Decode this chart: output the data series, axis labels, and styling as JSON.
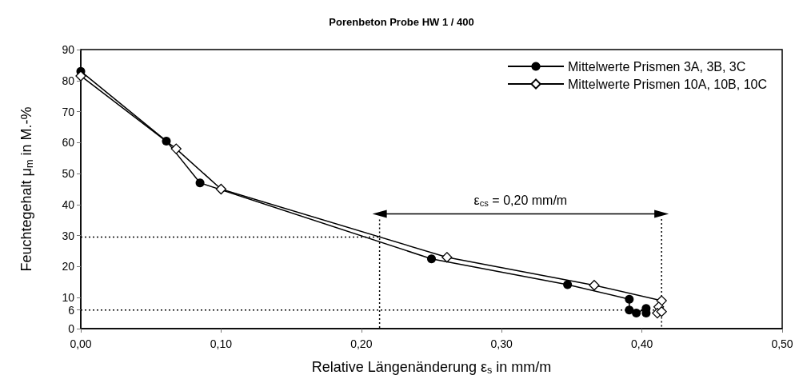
{
  "chart_data": {
    "type": "line",
    "title": "Porenbeton Probe HW 1 / 400",
    "xlabel": "Relative Längenänderung ε$_{s}$ in mm/m",
    "ylabel": "Feuchtegehalt μ$_{m}$ in M.-%",
    "xlim": [
      0,
      0.5
    ],
    "xticks": [
      {
        "value": 0,
        "label": "0,00"
      },
      {
        "value": 0.1,
        "label": "0,10"
      },
      {
        "value": 0.2,
        "label": "0,20"
      },
      {
        "value": 0.3,
        "label": "0,30"
      },
      {
        "value": 0.4,
        "label": "0,40"
      },
      {
        "value": 0.5,
        "label": "0,50"
      }
    ],
    "ylim": [
      0,
      90
    ],
    "yticks": [
      0,
      6,
      10,
      20,
      30,
      40,
      50,
      60,
      70,
      80,
      90
    ],
    "grid": false,
    "legend": "top right",
    "series": [
      {
        "name": "Mittelwerte Prismen 3A, 3B, 3C",
        "color": "#000000",
        "marker": "circle",
        "x": [
          0,
          0.061,
          0.085,
          0.25,
          0.347,
          0.391,
          0.391,
          0.396,
          0.403,
          0.403
        ],
        "values": [
          83,
          60.5,
          47,
          22.5,
          14.2,
          9.5,
          6,
          5,
          6.5,
          5
        ]
      },
      {
        "name": "Mittelwerte Prismen 10A, 10B, 10C",
        "color": "#000000",
        "marker": "diamond",
        "x": [
          0,
          0.068,
          0.1,
          0.261,
          0.366,
          0.414,
          0.412,
          0.411,
          0.414
        ],
        "values": [
          81.5,
          58,
          45,
          23,
          14,
          9,
          7,
          5,
          5.5
        ]
      },
      {
        "color": "#000000",
        "marker": "none",
        "line_style": "dotted",
        "x": [
          0,
          0.213,
          0.213
        ],
        "values": [
          29.5,
          29.5,
          0
        ]
      },
      {
        "color": "#000000",
        "marker": "none",
        "line_style": "dotted",
        "x": [
          0,
          0.414,
          0.414
        ],
        "values": [
          6,
          6,
          0
        ]
      },
      {
        "color": "#000000",
        "marker": "none",
        "line_style": "dotted",
        "x": [
          0.213,
          0.213
        ],
        "values": [
          29.5,
          36
        ]
      },
      {
        "color": "#000000",
        "marker": "none",
        "line_style": "dotted",
        "x": [
          0.414,
          0.414
        ],
        "values": [
          9,
          36
        ]
      },
      {
        "color": "#000000",
        "marker": "triangle",
        "x": [
          0.213,
          0.414
        ],
        "values": [
          37,
          37
        ]
      }
    ],
    "annotations": [
      {
        "text": "ε$_{cs}$ = 0,20 mm/m",
        "x": 0.3135,
        "y": 37
      }
    ]
  }
}
